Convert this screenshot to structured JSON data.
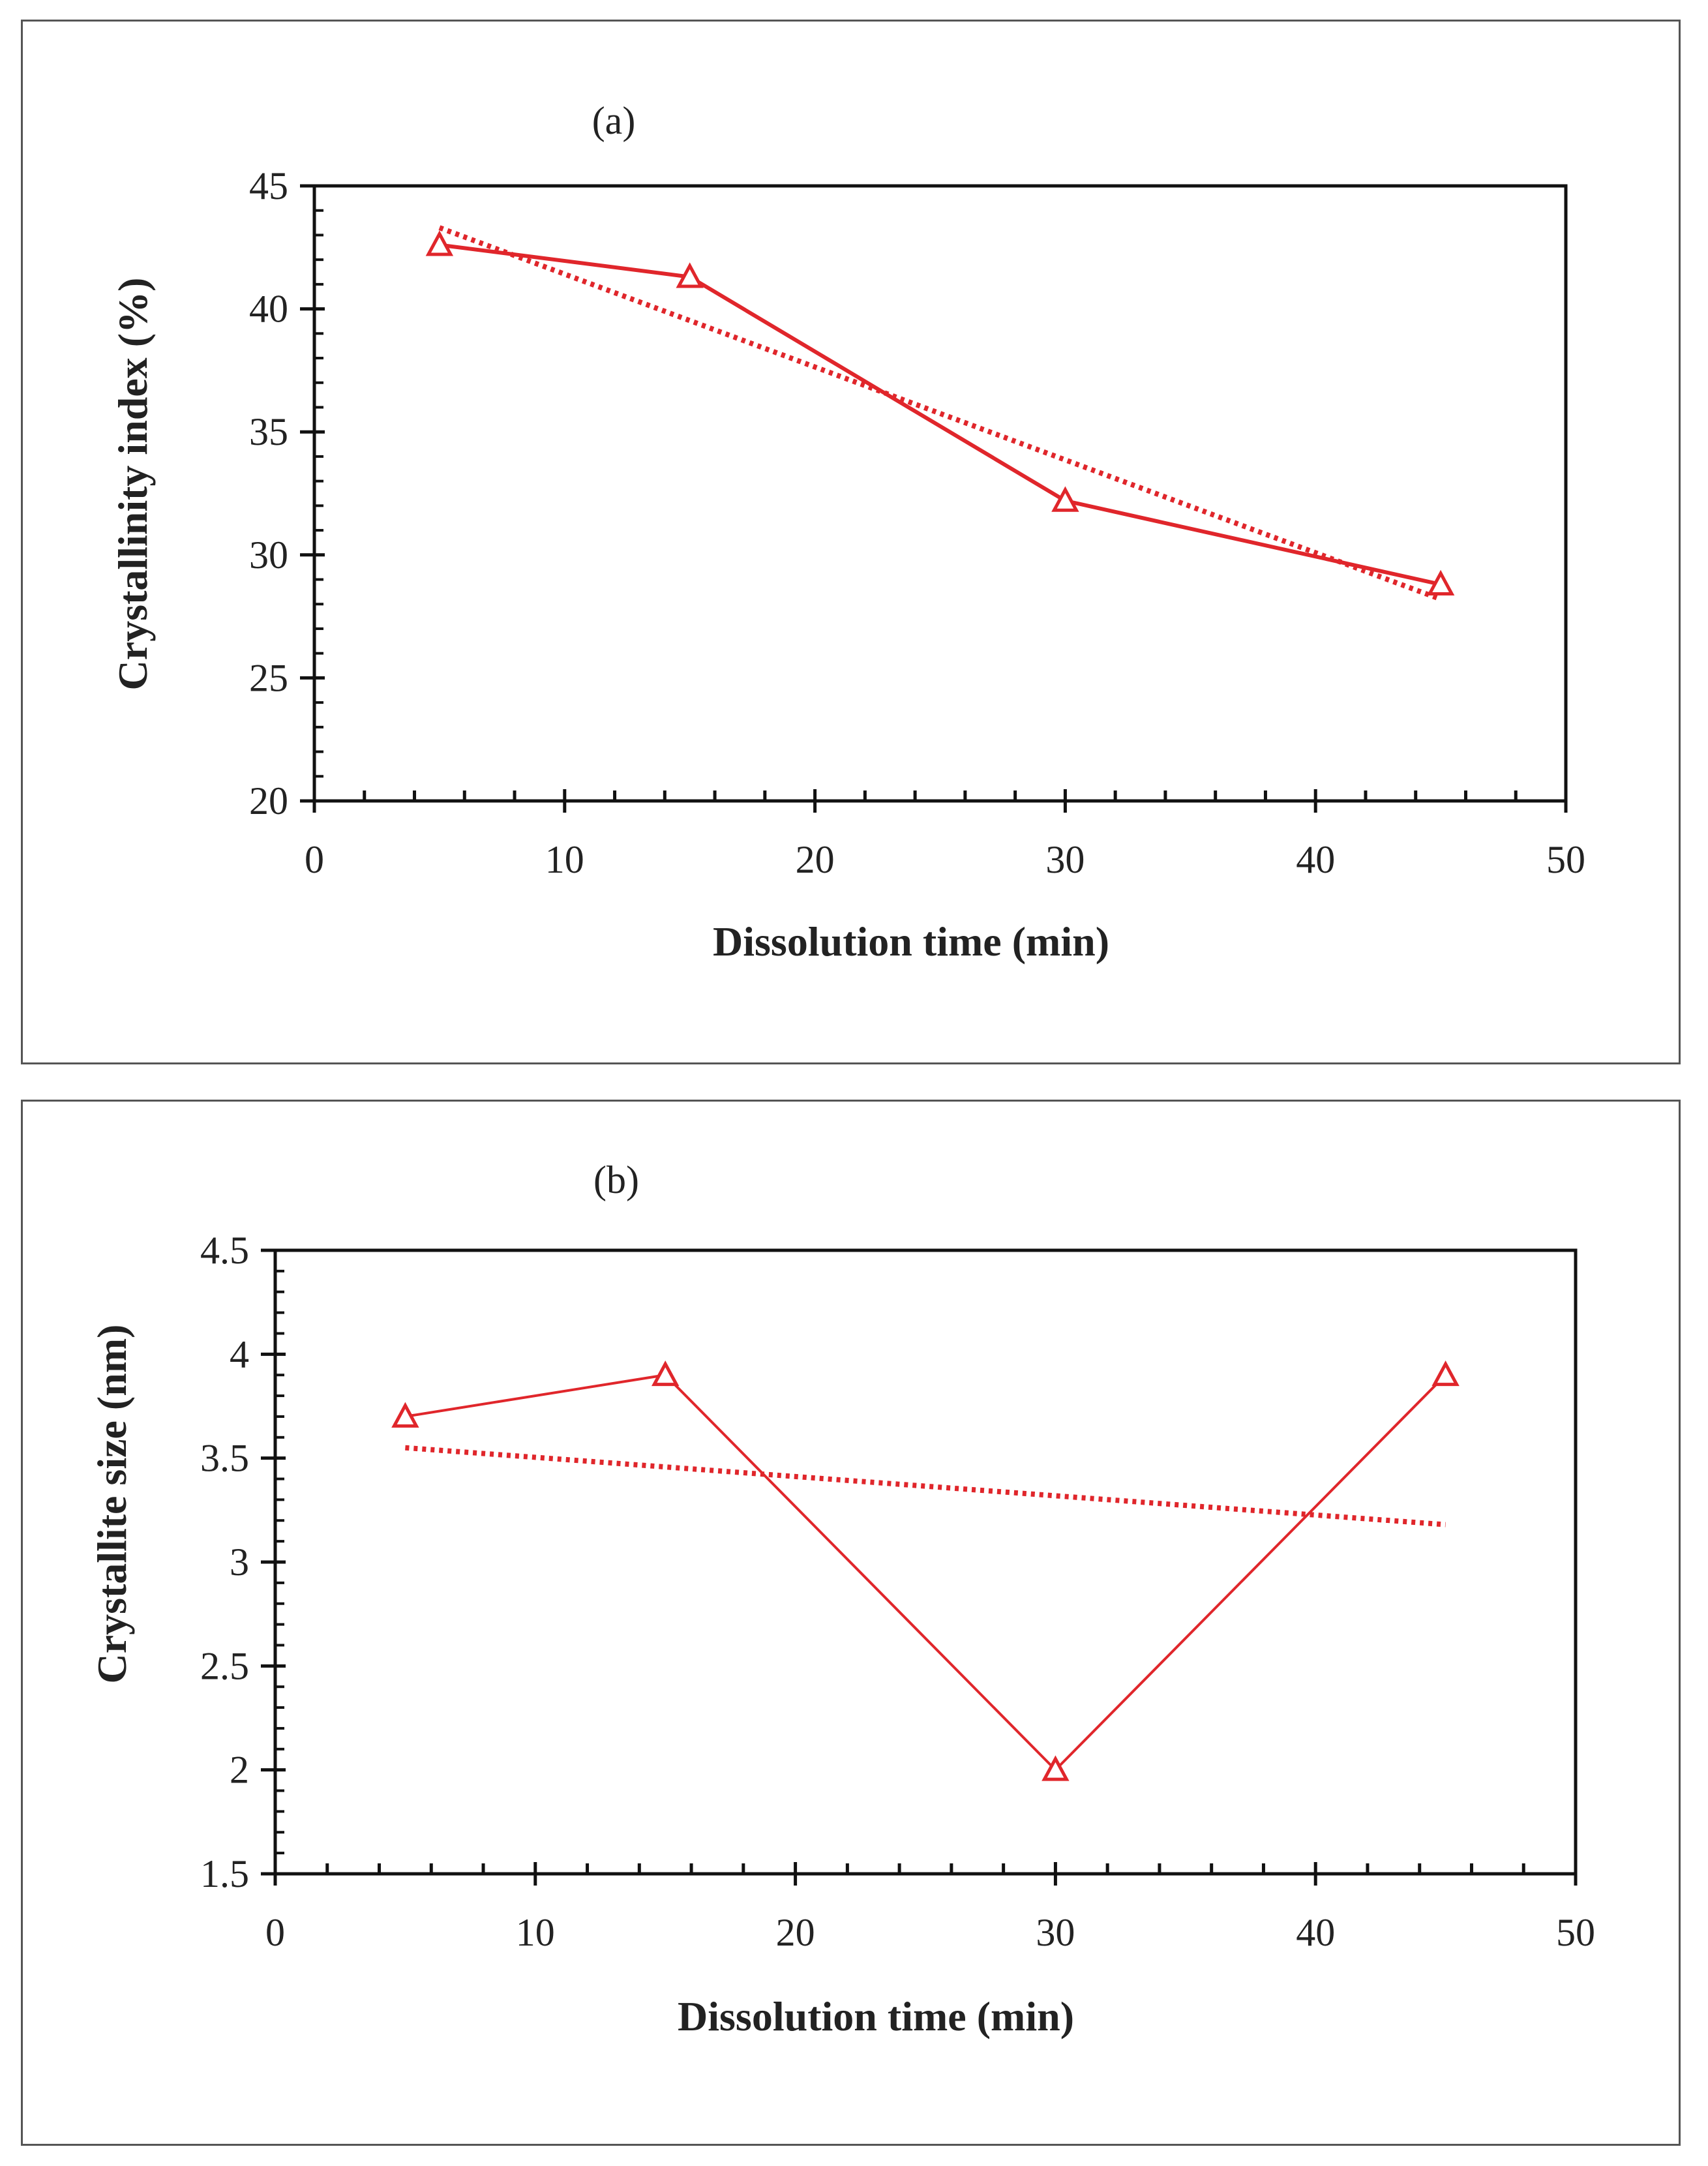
{
  "chart_data": [
    {
      "type": "line",
      "panel_label": "(a)",
      "xlabel": "Dissolution time (min)",
      "ylabel": "Crystallinity index (%)",
      "xlim": [
        0,
        50
      ],
      "ylim": [
        20,
        45
      ],
      "xticks": [
        0,
        10,
        20,
        30,
        40,
        50
      ],
      "yticks": [
        20,
        25,
        30,
        35,
        40,
        45
      ],
      "x_minor_step": 2,
      "y_minor_step": 1,
      "series": [
        {
          "name": "Crystallinity index",
          "x": [
            5,
            15,
            30,
            45
          ],
          "values": [
            42.6,
            41.3,
            32.2,
            28.8
          ],
          "marker": "triangle-open",
          "line": "solid"
        },
        {
          "name": "Linear trend",
          "x": [
            5,
            45
          ],
          "values": [
            43.3,
            28.2
          ],
          "line": "dotted"
        }
      ],
      "color": "#e0262b"
    },
    {
      "type": "line",
      "panel_label": "(b)",
      "xlabel": "Dissolution time (min)",
      "ylabel": "Crystallite size (nm)",
      "xlim": [
        0,
        50
      ],
      "ylim": [
        1.5,
        4.5
      ],
      "xticks": [
        0,
        10,
        20,
        30,
        40,
        50
      ],
      "yticks": [
        1.5,
        2,
        2.5,
        3,
        3.5,
        4,
        4.5
      ],
      "x_minor_step": 2,
      "y_minor_step": 0.1,
      "series": [
        {
          "name": "Crystallite size",
          "x": [
            5,
            15,
            30,
            45
          ],
          "values": [
            3.7,
            3.9,
            2.0,
            3.9
          ],
          "marker": "triangle-open",
          "line": "solid"
        },
        {
          "name": "Linear trend",
          "x": [
            5,
            45
          ],
          "values": [
            3.55,
            3.18
          ],
          "line": "dotted"
        }
      ],
      "color": "#e0262b"
    }
  ]
}
